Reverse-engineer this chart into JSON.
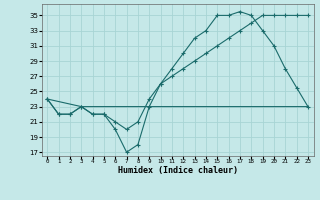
{
  "xlabel": "Humidex (Indice chaleur)",
  "ylabel": "",
  "background_color": "#c5e8e8",
  "grid_color": "#a8d4d4",
  "line_color": "#1a6b6b",
  "xlim": [
    -0.5,
    23.5
  ],
  "ylim": [
    16.5,
    36.5
  ],
  "xticks": [
    0,
    1,
    2,
    3,
    4,
    5,
    6,
    7,
    8,
    9,
    10,
    11,
    12,
    13,
    14,
    15,
    16,
    17,
    18,
    19,
    20,
    21,
    22,
    23
  ],
  "yticks": [
    17,
    19,
    21,
    23,
    25,
    27,
    29,
    31,
    33,
    35
  ],
  "line1_x": [
    0,
    1,
    2,
    3,
    4,
    5,
    6,
    7,
    8,
    9,
    10,
    11,
    12,
    13,
    14,
    15,
    16,
    17,
    18,
    19,
    20,
    21,
    22,
    23
  ],
  "line1_y": [
    24,
    22,
    22,
    23,
    22,
    22,
    20,
    17,
    18,
    23,
    26,
    28,
    30,
    32,
    33,
    35,
    35,
    35.5,
    35,
    33,
    31,
    28,
    25.5,
    23
  ],
  "line2_x": [
    0,
    1,
    2,
    3,
    4,
    5,
    6,
    7,
    8,
    9,
    10,
    11,
    12,
    13,
    14,
    15,
    16,
    17,
    18,
    19,
    20,
    21,
    22,
    23
  ],
  "line2_y": [
    24,
    22,
    22,
    23,
    22,
    22,
    21,
    20,
    21,
    24,
    26,
    27,
    28,
    29,
    30,
    31,
    32,
    33,
    34,
    35,
    35,
    35,
    35,
    35
  ],
  "line3_x": [
    0,
    3,
    10,
    16,
    19,
    22,
    23
  ],
  "line3_y": [
    24,
    23,
    23,
    23,
    23,
    23,
    23
  ]
}
